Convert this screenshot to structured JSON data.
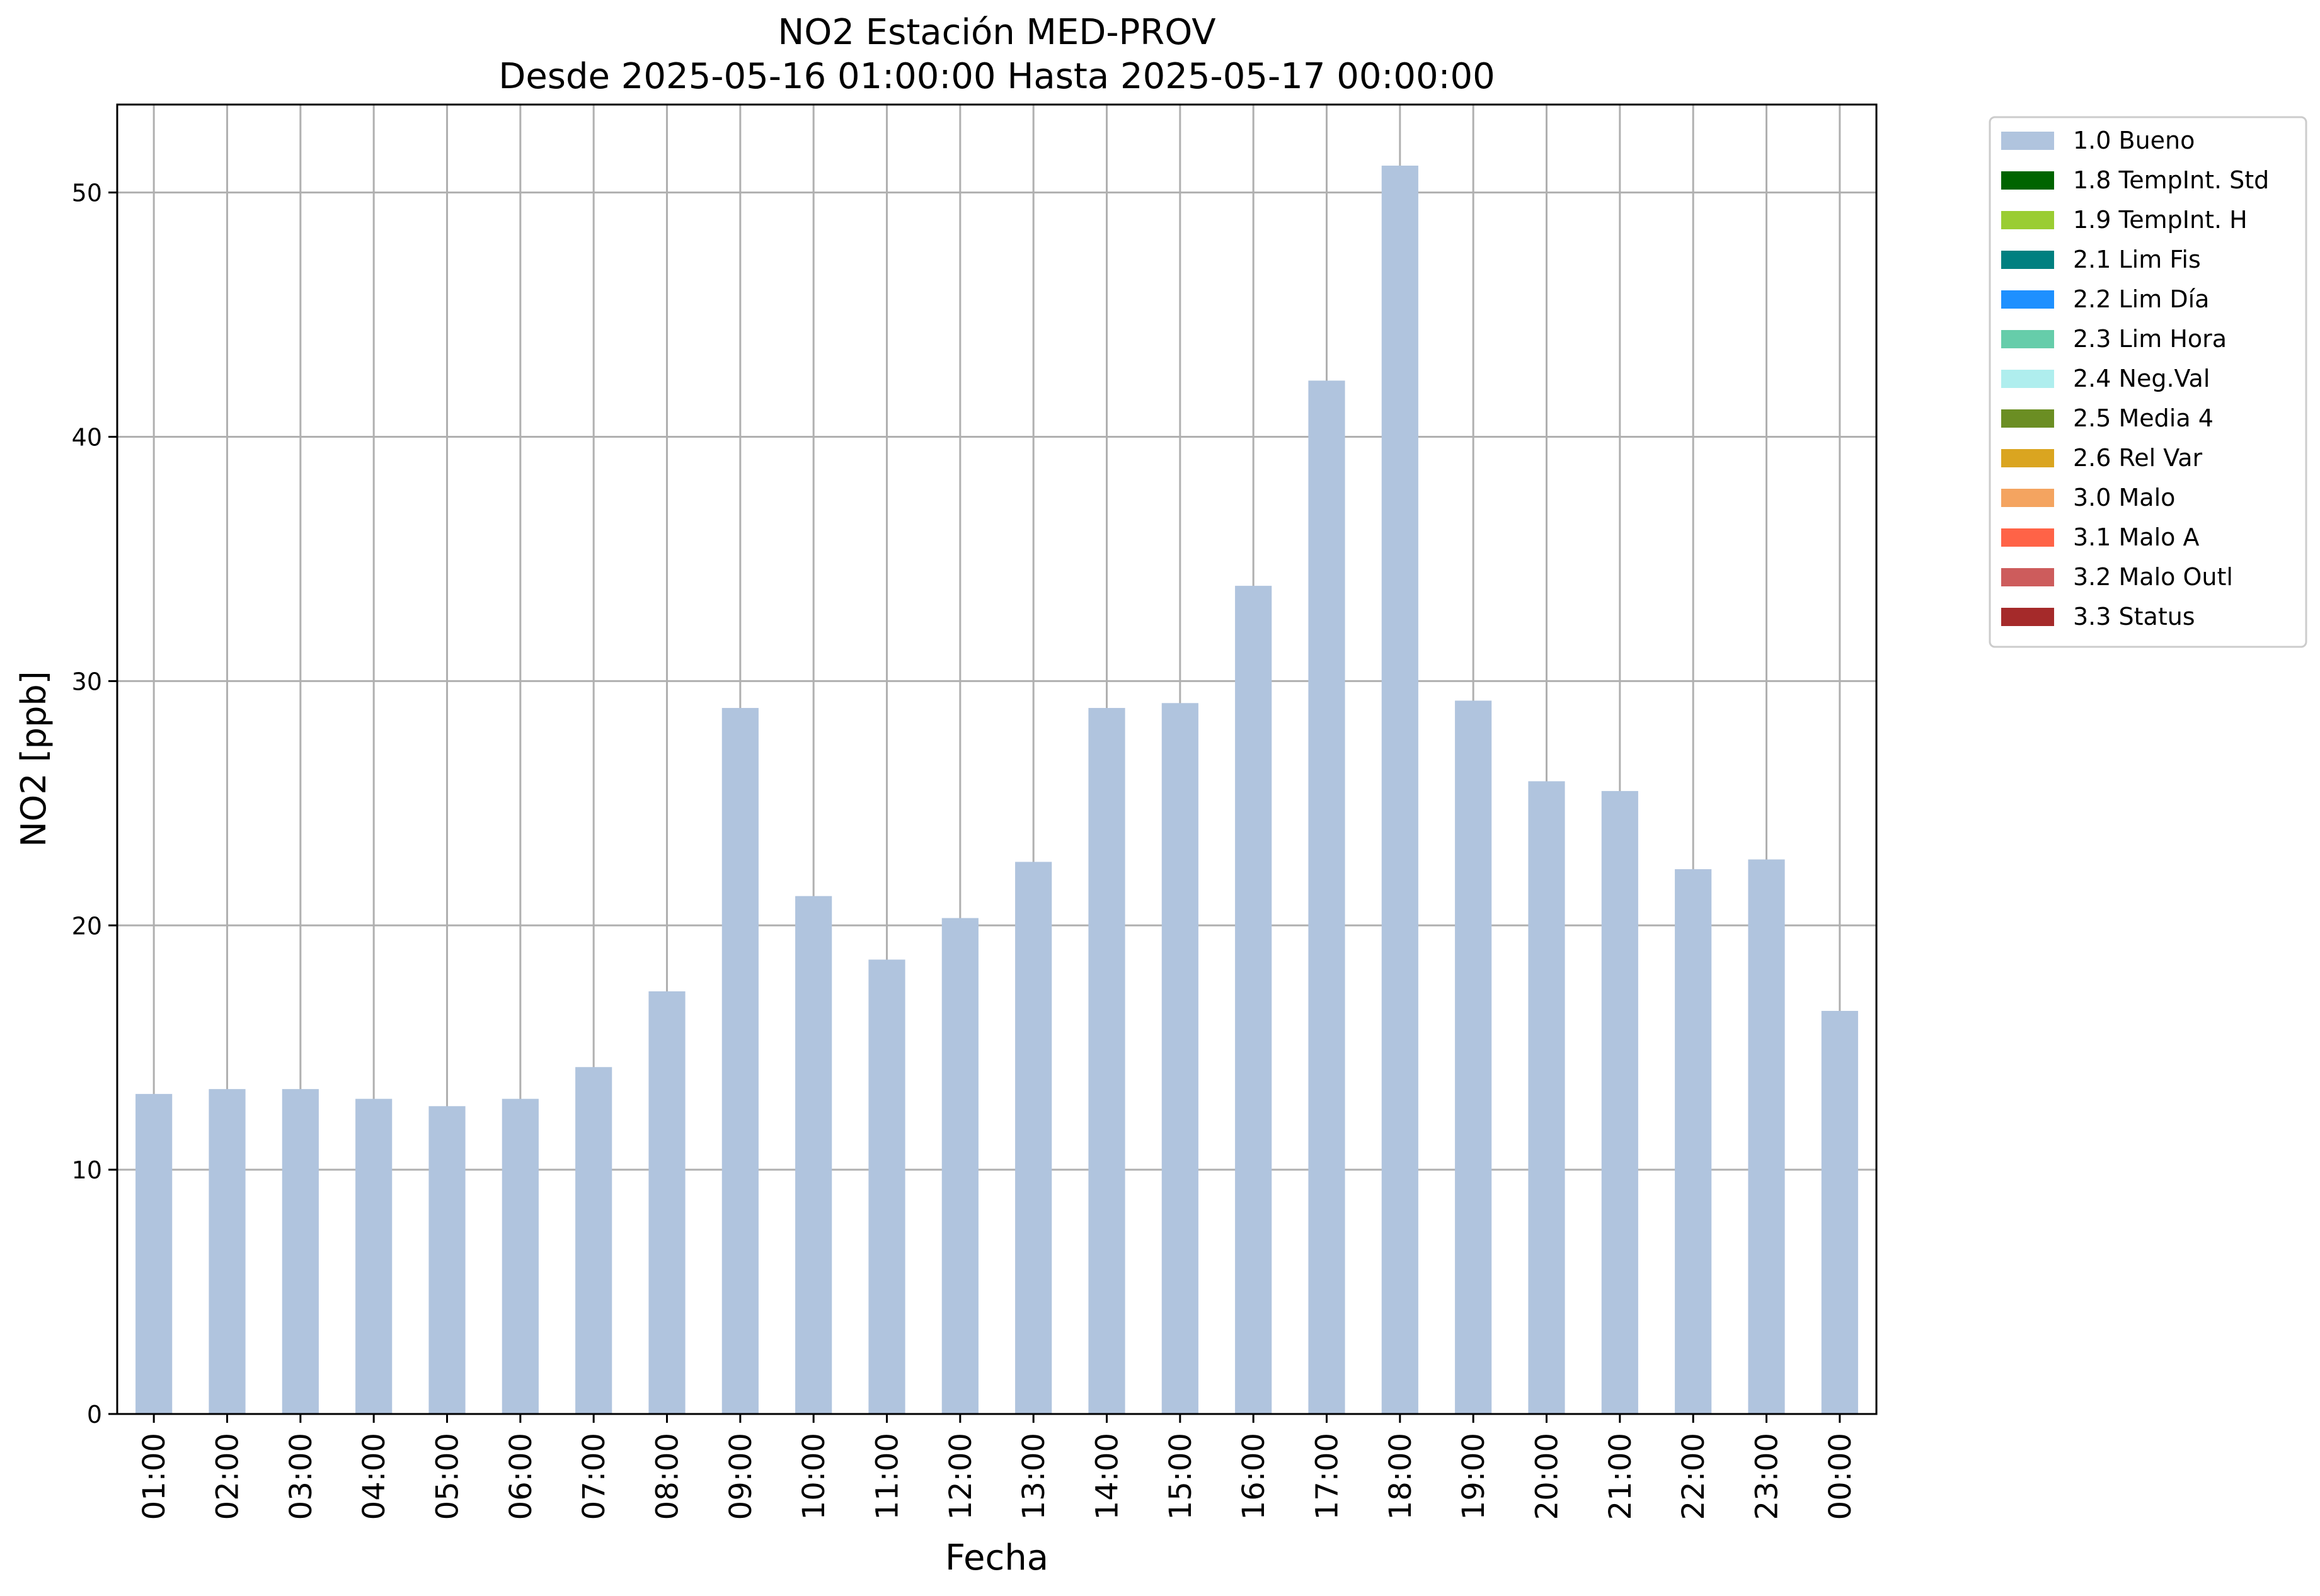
{
  "chart_data": {
    "type": "bar",
    "title": "NO2 Estación MED-PROV",
    "subtitle": "Desde 2025-05-16 01:00:00 Hasta 2025-05-17 00:00:00",
    "xlabel": "Fecha",
    "ylabel": "NO2 [ppb]",
    "ylim": [
      0,
      53.6
    ],
    "yticks": [
      0,
      10,
      20,
      30,
      40,
      50
    ],
    "grid": true,
    "legend_position": "outside-top-right",
    "categories": [
      "01:00",
      "02:00",
      "03:00",
      "04:00",
      "05:00",
      "06:00",
      "07:00",
      "08:00",
      "09:00",
      "10:00",
      "11:00",
      "12:00",
      "13:00",
      "14:00",
      "15:00",
      "16:00",
      "17:00",
      "18:00",
      "19:00",
      "20:00",
      "21:00",
      "22:00",
      "23:00",
      "00:00"
    ],
    "series": [
      {
        "name": "1.0 Bueno",
        "color": "#b0c4de",
        "values": [
          13.1,
          13.3,
          13.3,
          12.9,
          12.6,
          12.9,
          14.2,
          17.3,
          28.9,
          21.2,
          18.6,
          20.3,
          22.6,
          28.9,
          29.1,
          33.9,
          42.3,
          51.1,
          29.2,
          25.9,
          25.5,
          22.3,
          22.7,
          16.5
        ]
      }
    ],
    "legend": [
      {
        "label": "1.0 Bueno",
        "color": "#b0c4de"
      },
      {
        "label": "1.8 TempInt. Std",
        "color": "#006400"
      },
      {
        "label": "1.9 TempInt. H",
        "color": "#9acd32"
      },
      {
        "label": "2.1 Lim Fis",
        "color": "#008080"
      },
      {
        "label": "2.2 Lim Día",
        "color": "#1e90ff"
      },
      {
        "label": "2.3 Lim Hora",
        "color": "#66cdaa"
      },
      {
        "label": "2.4 Neg.Val",
        "color": "#afeeee"
      },
      {
        "label": "2.5 Media 4",
        "color": "#6b8e23"
      },
      {
        "label": "2.6 Rel Var",
        "color": "#daa520"
      },
      {
        "label": "3.0 Malo",
        "color": "#f4a460"
      },
      {
        "label": "3.1 Malo A",
        "color": "#ff6347"
      },
      {
        "label": "3.2 Malo Outl",
        "color": "#cd5c5c"
      },
      {
        "label": "3.3 Status",
        "color": "#a52a2a"
      }
    ]
  }
}
